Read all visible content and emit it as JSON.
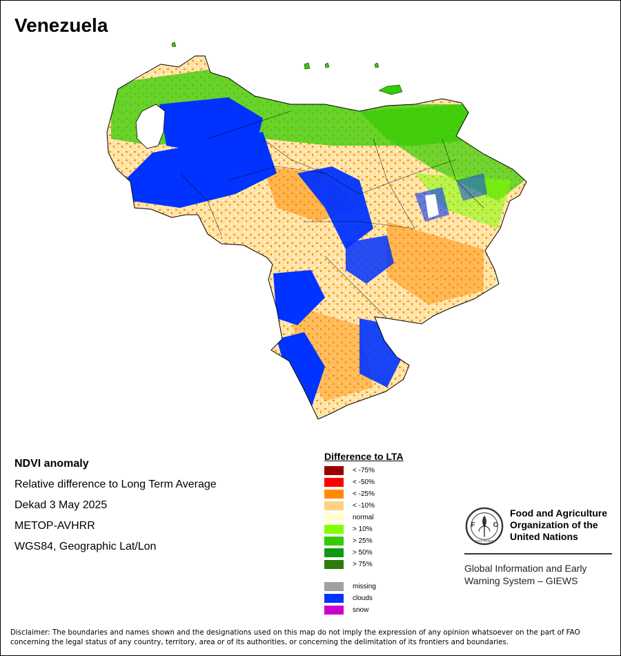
{
  "map": {
    "title": "Venezuela",
    "country": "Venezuela"
  },
  "info": {
    "title": "NDVI anomaly",
    "subtitle": "Relative difference to Long Term Average",
    "period": "Dekad 3 May 2025",
    "sensor": "METOP-AVHRR",
    "projection": "WGS84, Geographic Lat/Lon"
  },
  "legend": {
    "title": "Difference to LTA",
    "classes": [
      {
        "label": "< -75%",
        "color": "#9b0000"
      },
      {
        "label": "< -50%",
        "color": "#ff0000"
      },
      {
        "label": "< -25%",
        "color": "#ff8c00"
      },
      {
        "label": "< -10%",
        "color": "#ffd27f"
      },
      {
        "label": "normal",
        "color": "#ffffd2"
      },
      {
        "label": "> 10%",
        "color": "#80ff00"
      },
      {
        "label": "> 25%",
        "color": "#33cc00"
      },
      {
        "label": "> 50%",
        "color": "#109910"
      },
      {
        "label": "> 75%",
        "color": "#2e7a0a"
      }
    ],
    "extra": [
      {
        "label": "missing",
        "color": "#a0a0a0"
      },
      {
        "label": "clouds",
        "color": "#0033ff"
      },
      {
        "label": "snow",
        "color": "#cc00cc"
      }
    ]
  },
  "org": {
    "name_line1": "Food and Agriculture",
    "name_line2": "Organization of the",
    "name_line3": "United Nations",
    "logo_text": "FAO",
    "logo_motto": "FIAT PANIS",
    "system_line1": "Global Information and Early",
    "system_line2": "Warning System – GIEWS"
  },
  "disclaimer": {
    "line1": "Disclaimer: The boundaries and names shown and the designations used on this map do not imply the expression of any opinion whatsoever on the part of FAO",
    "line2": "concerning the legal status of any country, territory, area or of its authorities, or concerning the delimitation of its frontiers and boundaries."
  }
}
